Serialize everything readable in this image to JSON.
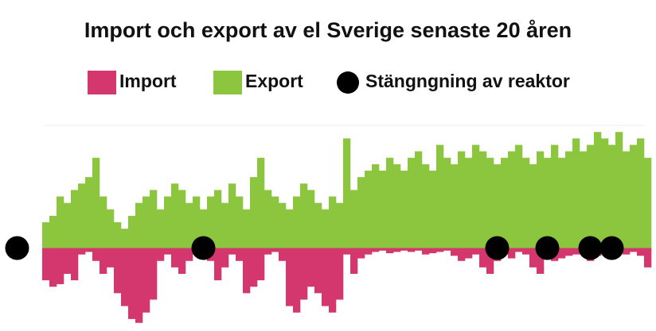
{
  "chart_data": {
    "type": "bar",
    "title": "Import och export av el Sverige senaste 20 åren",
    "categories": [
      null,
      null,
      null,
      null,
      null,
      null,
      null,
      null,
      null,
      null,
      null,
      null,
      null,
      null,
      null,
      null,
      null,
      null,
      null,
      null,
      null,
      null,
      null,
      null,
      null,
      null,
      null,
      null,
      null,
      null,
      null,
      null,
      null,
      null,
      null,
      null,
      null,
      null,
      null,
      null,
      null,
      null,
      null,
      null,
      null,
      null,
      null,
      null,
      null,
      null,
      null,
      null,
      null,
      null,
      null,
      null,
      null,
      null,
      null,
      null,
      null,
      null,
      null,
      null,
      null,
      null,
      null,
      null,
      null,
      null,
      null,
      null,
      null,
      null,
      null,
      null,
      null,
      null,
      null,
      null,
      null,
      null,
      null,
      null,
      null,
      null,
      null,
      null,
      null,
      null
    ],
    "ylim": [
      -60,
      100
    ],
    "series": [
      {
        "name": "Import",
        "color": "#d4376e",
        "type": "bar",
        "values": [
          null,
          null,
          null,
          null,
          null,
          -25,
          -30,
          -28,
          -20,
          -25,
          -5,
          -3,
          -10,
          -20,
          -15,
          -35,
          -45,
          -55,
          -58,
          -50,
          -40,
          -10,
          -5,
          -15,
          -20,
          -10,
          -5,
          -8,
          -10,
          -25,
          -15,
          -5,
          -10,
          -35,
          -30,
          -25,
          -5,
          -3,
          -10,
          -45,
          -50,
          -40,
          -30,
          -35,
          -45,
          -50,
          -40,
          -5,
          -20,
          -8,
          -5,
          -3,
          -2,
          -4,
          -3,
          -2,
          -3,
          -2,
          -5,
          -4,
          -3,
          -2,
          -6,
          -10,
          -8,
          -5,
          -15,
          -20,
          -10,
          -5,
          -8,
          -3,
          -5,
          -15,
          -20,
          -5,
          -10,
          -8,
          -6,
          -5,
          -4,
          -10,
          -6,
          -5,
          -3,
          -4,
          -5,
          -3,
          -6,
          -15
        ]
      },
      {
        "name": "Export",
        "color": "#8cc63f",
        "type": "bar",
        "values": [
          null,
          null,
          null,
          null,
          null,
          20,
          25,
          40,
          35,
          45,
          50,
          55,
          70,
          40,
          30,
          20,
          15,
          25,
          35,
          40,
          45,
          30,
          40,
          50,
          45,
          35,
          40,
          30,
          40,
          45,
          35,
          50,
          40,
          30,
          55,
          70,
          45,
          40,
          35,
          30,
          40,
          50,
          45,
          35,
          30,
          40,
          35,
          85,
          45,
          55,
          60,
          65,
          60,
          70,
          65,
          60,
          70,
          75,
          65,
          60,
          80,
          70,
          65,
          75,
          70,
          80,
          75,
          70,
          65,
          70,
          75,
          80,
          70,
          65,
          75,
          70,
          80,
          70,
          75,
          85,
          75,
          80,
          90,
          85,
          80,
          90,
          75,
          80,
          85,
          70
        ]
      },
      {
        "name": "Stängngning av reaktor",
        "color": "#000000",
        "type": "scatter",
        "values": [
          null,
          0,
          null,
          null,
          null,
          null,
          null,
          null,
          null,
          null,
          null,
          null,
          null,
          null,
          null,
          null,
          null,
          null,
          null,
          null,
          null,
          null,
          null,
          null,
          null,
          null,
          null,
          0,
          null,
          null,
          null,
          null,
          null,
          null,
          null,
          null,
          null,
          null,
          null,
          null,
          null,
          null,
          null,
          null,
          null,
          null,
          null,
          null,
          null,
          null,
          null,
          null,
          null,
          null,
          null,
          null,
          null,
          null,
          null,
          null,
          null,
          null,
          null,
          null,
          null,
          null,
          null,
          null,
          0,
          null,
          null,
          null,
          null,
          null,
          null,
          0,
          null,
          null,
          null,
          null,
          null,
          0,
          null,
          null,
          0,
          null,
          null,
          null,
          null,
          null
        ]
      }
    ]
  }
}
